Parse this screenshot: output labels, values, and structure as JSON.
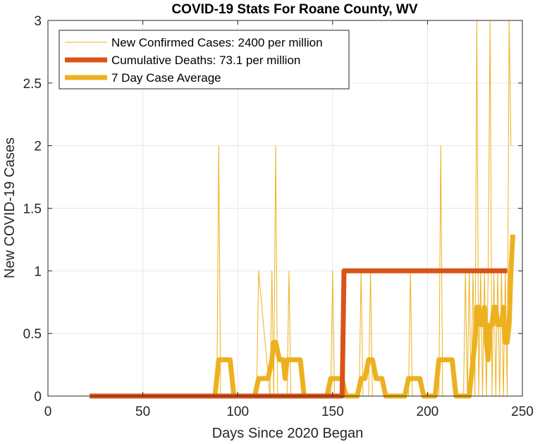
{
  "chart_data": {
    "type": "line",
    "title": "COVID-19 Stats For Roane County, WV",
    "xlabel": "Days Since 2020 Began",
    "ylabel": "New COVID-19 Cases",
    "xlim": [
      0,
      250
    ],
    "ylim": [
      0,
      3
    ],
    "xticks": [
      0,
      50,
      100,
      150,
      200,
      250
    ],
    "yticks": [
      0,
      0.5,
      1,
      1.5,
      2,
      2.5,
      3
    ],
    "xtick_labels": [
      "0",
      "50",
      "100",
      "150",
      "200",
      "250"
    ],
    "ytick_labels": [
      "0",
      "0.5",
      "1",
      "1.5",
      "2",
      "2.5",
      "3"
    ],
    "grid": true,
    "legend_position": "top-left",
    "series": [
      {
        "name": "New Confirmed Cases: 2400 per million",
        "color": "#EDB120",
        "style": "thin",
        "x": [
          22,
          89,
          90,
          91,
          110,
          111,
          117,
          118,
          119,
          120,
          121,
          126,
          127,
          128,
          149,
          150,
          151,
          164,
          165,
          166,
          169,
          170,
          171,
          190,
          191,
          192,
          206,
          207,
          208,
          219,
          220,
          221,
          222,
          223,
          224,
          225,
          226,
          227,
          228,
          229,
          230,
          231,
          232,
          233,
          234,
          235,
          236,
          237,
          238,
          239,
          240,
          241,
          242,
          243,
          244
        ],
        "y": [
          0,
          0,
          2,
          0,
          0,
          1,
          0,
          1,
          0,
          2,
          0,
          0,
          1,
          0,
          0,
          1,
          0,
          0,
          1,
          0,
          0,
          1,
          0,
          0,
          1,
          0,
          0,
          2,
          0,
          0,
          1,
          0,
          1,
          0,
          1,
          0,
          3,
          0,
          1,
          0,
          1,
          0,
          1,
          3,
          0,
          1,
          0,
          1,
          0,
          1,
          0,
          1,
          0,
          3,
          2
        ]
      },
      {
        "name": "Cumulative Deaths: 73.1 per million",
        "color": "#D95319",
        "style": "thick",
        "x": [
          22,
          155,
          156,
          242
        ],
        "y": [
          0,
          0,
          1,
          1
        ]
      },
      {
        "name": "7 Day Case Average",
        "color": "#EDB120",
        "style": "thick",
        "x": [
          22,
          88,
          90,
          96,
          98,
          109,
          111,
          116,
          118,
          119,
          120,
          122,
          124,
          125,
          126,
          127,
          128,
          133,
          135,
          147,
          149,
          155,
          157,
          163,
          165,
          167,
          169,
          171,
          173,
          176,
          178,
          188,
          190,
          196,
          198,
          204,
          206,
          213,
          215,
          222,
          224,
          225,
          226,
          227,
          228,
          229,
          230,
          231,
          232,
          233,
          234,
          235,
          236,
          237,
          238,
          239,
          240,
          241,
          242,
          243,
          244,
          245
        ],
        "y": [
          0,
          0,
          0.29,
          0.29,
          0,
          0,
          0.14,
          0.14,
          0.29,
          0.43,
          0.43,
          0.29,
          0.29,
          0.14,
          0.29,
          0.29,
          0.29,
          0.29,
          0,
          0,
          0.14,
          0.14,
          0,
          0,
          0.14,
          0.14,
          0.29,
          0.29,
          0.14,
          0.14,
          0,
          0,
          0.14,
          0.14,
          0,
          0,
          0.29,
          0.29,
          0,
          0,
          0.29,
          0.43,
          0.71,
          0.71,
          0.57,
          0.57,
          0.71,
          0.43,
          0.29,
          0.57,
          0.57,
          0.71,
          0.71,
          0.57,
          0.57,
          0.57,
          0.71,
          0.43,
          0.43,
          0.57,
          1.0,
          1.29
        ]
      }
    ]
  }
}
